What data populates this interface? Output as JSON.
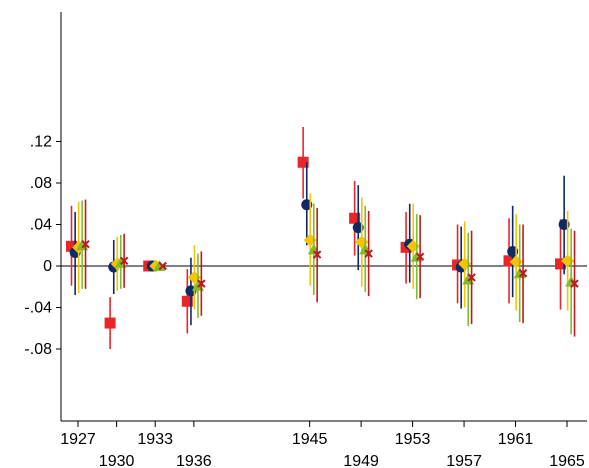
{
  "chart_data": {
    "type": "scatter",
    "title": "",
    "xlabel": "",
    "ylabel": "",
    "ylim": [
      -0.09,
      0.15
    ],
    "xlim": [
      1925,
      1967
    ],
    "grid": false,
    "legend": "none",
    "zero_line": true,
    "y_ticks": [
      {
        "value": -0.08,
        "label": "-.08"
      },
      {
        "value": -0.04,
        "label": "-.04"
      },
      {
        "value": 0,
        "label": "0"
      },
      {
        "value": 0.04,
        "label": ".04"
      },
      {
        "value": 0.08,
        "label": ".08"
      },
      {
        "value": 0.12,
        "label": ".12"
      }
    ],
    "x_ticks": [
      {
        "value": 1927,
        "label": "1927",
        "row": 1
      },
      {
        "value": 1930,
        "label": "1930",
        "row": 2
      },
      {
        "value": 1933,
        "label": "1933",
        "row": 1
      },
      {
        "value": 1936,
        "label": "1936",
        "row": 2
      },
      {
        "value": 1945,
        "label": "1945",
        "row": 1
      },
      {
        "value": 1949,
        "label": "1949",
        "row": 2
      },
      {
        "value": 1953,
        "label": "1953",
        "row": 1
      },
      {
        "value": 1957,
        "label": "1957",
        "row": 2
      },
      {
        "value": 1961,
        "label": "1961",
        "row": 1
      },
      {
        "value": 1965,
        "label": "1965",
        "row": 2
      }
    ],
    "series": [
      {
        "marker": "square",
        "color": "#e8262a",
        "offset": -0.5,
        "points": [
          {
            "x": 1927,
            "y": 0.019,
            "lo": -0.019,
            "hi": 0.058
          },
          {
            "x": 1930,
            "y": -0.055,
            "lo": -0.08,
            "hi": -0.03
          },
          {
            "x": 1933,
            "y": 0.0,
            "lo": 0.0,
            "hi": 0.0
          },
          {
            "x": 1936,
            "y": -0.034,
            "lo": -0.065,
            "hi": -0.003
          },
          {
            "x": 1945,
            "y": 0.1,
            "lo": 0.065,
            "hi": 0.134
          },
          {
            "x": 1949,
            "y": 0.046,
            "lo": 0.01,
            "hi": 0.082
          },
          {
            "x": 1953,
            "y": 0.018,
            "lo": -0.017,
            "hi": 0.052
          },
          {
            "x": 1957,
            "y": 0.001,
            "lo": -0.036,
            "hi": 0.04
          },
          {
            "x": 1961,
            "y": 0.005,
            "lo": -0.036,
            "hi": 0.046
          },
          {
            "x": 1965,
            "y": 0.002,
            "lo": -0.042,
            "hi": 0.045
          }
        ]
      },
      {
        "marker": "circle",
        "color": "#0d2a66",
        "offset": -0.22,
        "points": [
          {
            "x": 1927,
            "y": 0.013,
            "lo": -0.028,
            "hi": 0.052
          },
          {
            "x": 1930,
            "y": -0.001,
            "lo": -0.027,
            "hi": 0.025
          },
          {
            "x": 1933,
            "y": 0.0,
            "lo": 0.0,
            "hi": 0.0
          },
          {
            "x": 1936,
            "y": -0.024,
            "lo": -0.057,
            "hi": 0.008
          },
          {
            "x": 1945,
            "y": 0.059,
            "lo": 0.02,
            "hi": 0.1
          },
          {
            "x": 1949,
            "y": 0.037,
            "lo": -0.004,
            "hi": 0.078
          },
          {
            "x": 1953,
            "y": 0.021,
            "lo": -0.016,
            "hi": 0.06
          },
          {
            "x": 1957,
            "y": -0.001,
            "lo": -0.041,
            "hi": 0.038
          },
          {
            "x": 1961,
            "y": 0.014,
            "lo": -0.03,
            "hi": 0.058
          },
          {
            "x": 1965,
            "y": 0.04,
            "lo": -0.008,
            "hi": 0.087
          }
        ]
      },
      {
        "marker": "diamond",
        "color": "#f5c400",
        "offset": 0.05,
        "points": [
          {
            "x": 1927,
            "y": 0.018,
            "lo": -0.026,
            "hi": 0.062
          },
          {
            "x": 1930,
            "y": 0.002,
            "lo": -0.024,
            "hi": 0.028
          },
          {
            "x": 1933,
            "y": 0.0,
            "lo": 0.0,
            "hi": 0.0
          },
          {
            "x": 1936,
            "y": -0.011,
            "lo": -0.042,
            "hi": 0.02
          },
          {
            "x": 1945,
            "y": 0.025,
            "lo": -0.019,
            "hi": 0.07
          },
          {
            "x": 1949,
            "y": 0.023,
            "lo": -0.02,
            "hi": 0.066
          },
          {
            "x": 1953,
            "y": 0.019,
            "lo": -0.022,
            "hi": 0.06
          },
          {
            "x": 1957,
            "y": 0.002,
            "lo": -0.04,
            "hi": 0.043
          },
          {
            "x": 1961,
            "y": 0.004,
            "lo": -0.043,
            "hi": 0.05
          },
          {
            "x": 1965,
            "y": 0.005,
            "lo": -0.043,
            "hi": 0.053
          }
        ]
      },
      {
        "marker": "triangle",
        "color": "#7fbd2a",
        "offset": 0.32,
        "points": [
          {
            "x": 1927,
            "y": 0.02,
            "lo": -0.022,
            "hi": 0.063
          },
          {
            "x": 1930,
            "y": 0.003,
            "lo": -0.022,
            "hi": 0.03
          },
          {
            "x": 1933,
            "y": 0.0,
            "lo": 0.0,
            "hi": 0.0
          },
          {
            "x": 1936,
            "y": -0.019,
            "lo": -0.05,
            "hi": 0.012
          },
          {
            "x": 1945,
            "y": 0.016,
            "lo": -0.028,
            "hi": 0.06
          },
          {
            "x": 1949,
            "y": 0.016,
            "lo": -0.025,
            "hi": 0.058
          },
          {
            "x": 1953,
            "y": 0.009,
            "lo": -0.032,
            "hi": 0.05
          },
          {
            "x": 1957,
            "y": -0.013,
            "lo": -0.058,
            "hi": 0.032
          },
          {
            "x": 1961,
            "y": -0.007,
            "lo": -0.054,
            "hi": 0.04
          },
          {
            "x": 1965,
            "y": -0.015,
            "lo": -0.066,
            "hi": 0.036
          }
        ]
      },
      {
        "marker": "x",
        "color": "#c0191f",
        "offset": 0.58,
        "points": [
          {
            "x": 1927,
            "y": 0.021,
            "lo": -0.022,
            "hi": 0.064
          },
          {
            "x": 1930,
            "y": 0.005,
            "lo": -0.021,
            "hi": 0.031
          },
          {
            "x": 1933,
            "y": 0.0,
            "lo": 0.0,
            "hi": 0.0
          },
          {
            "x": 1936,
            "y": -0.017,
            "lo": -0.048,
            "hi": 0.014
          },
          {
            "x": 1945,
            "y": 0.011,
            "lo": -0.035,
            "hi": 0.056
          },
          {
            "x": 1949,
            "y": 0.012,
            "lo": -0.029,
            "hi": 0.053
          },
          {
            "x": 1953,
            "y": 0.009,
            "lo": -0.031,
            "hi": 0.049
          },
          {
            "x": 1957,
            "y": -0.011,
            "lo": -0.056,
            "hi": 0.034
          },
          {
            "x": 1961,
            "y": -0.007,
            "lo": -0.055,
            "hi": 0.04
          },
          {
            "x": 1965,
            "y": -0.017,
            "lo": -0.068,
            "hi": 0.034
          }
        ]
      }
    ]
  }
}
